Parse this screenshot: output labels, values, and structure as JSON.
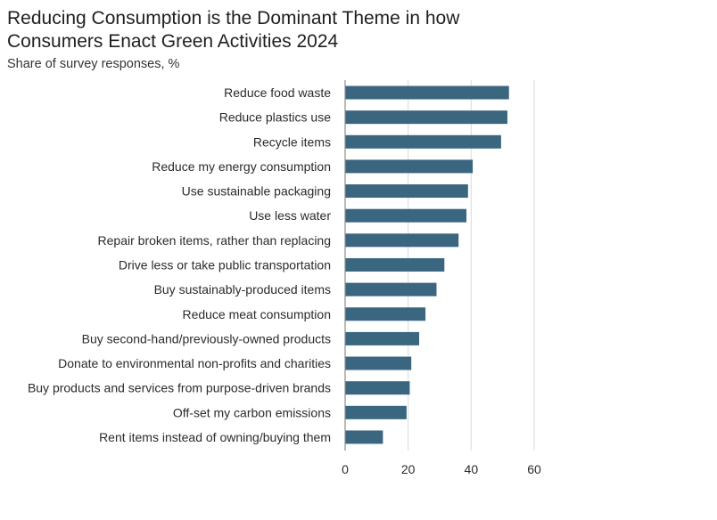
{
  "chart_data": {
    "type": "bar",
    "orientation": "horizontal",
    "title": "Reducing Consumption is the Dominant Theme in how Consumers Enact Green Activities 2024",
    "subtitle": "Share of survey responses, %",
    "categories": [
      "Reduce food waste",
      "Reduce plastics use",
      "Recycle items",
      "Reduce my energy consumption",
      "Use sustainable packaging",
      "Use less water",
      "Repair broken items, rather than replacing",
      "Drive less or take public transportation",
      "Buy sustainably-produced items",
      "Reduce meat consumption",
      "Buy second-hand/previously-owned products",
      "Donate to environmental non-profits and charities",
      "Buy products and services from purpose-driven brands",
      "Off-set my carbon emissions",
      "Rent items instead of owning/buying them"
    ],
    "values": [
      52,
      51.5,
      49.5,
      40.5,
      39,
      38.5,
      36,
      31.5,
      29,
      25.5,
      23.5,
      21,
      20.5,
      19.5,
      12
    ],
    "xlim": [
      0,
      60
    ],
    "xticks": [
      "0",
      "20",
      "40",
      "60"
    ],
    "grid": true,
    "xlabel": "",
    "ylabel": "",
    "colors": {
      "bar": "#3b6680",
      "grid": "#d9d9d9",
      "axis": "#8c8c8c"
    }
  }
}
